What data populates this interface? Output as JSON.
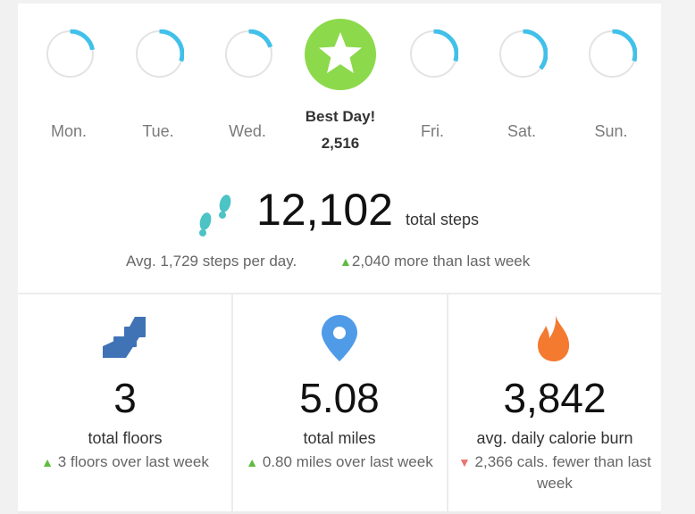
{
  "days": [
    {
      "label": "Mon.",
      "progress": 0.22
    },
    {
      "label": "Tue.",
      "progress": 0.3
    },
    {
      "label": "Wed.",
      "progress": 0.2
    },
    {
      "label": "Fri.",
      "progress": 0.3
    },
    {
      "label": "Sat.",
      "progress": 0.36
    },
    {
      "label": "Sun.",
      "progress": 0.3
    }
  ],
  "best_day": {
    "title": "Best Day!",
    "value": "2,516",
    "icon": "star-icon"
  },
  "steps": {
    "total": "12,102",
    "unit": "total steps",
    "average": "Avg. 1,729 steps per day.",
    "delta": "2,040 more than last week",
    "icon": "footprints-icon"
  },
  "stats": [
    {
      "icon": "stairs-icon",
      "value": "3",
      "label": "total floors",
      "delta": "3 floors over last week",
      "trend": "up"
    },
    {
      "icon": "map-pin-icon",
      "value": "5.08",
      "label": "total miles",
      "delta": "0.80 miles over last week",
      "trend": "up"
    },
    {
      "icon": "flame-icon",
      "value": "3,842",
      "label": "avg. daily calorie burn",
      "delta": "2,366 cals. fewer than last week",
      "trend": "down"
    }
  ],
  "colors": {
    "ring_progress": "#41c0ea",
    "ring_track": "#e3e3e3",
    "best_day": "#8cd94b",
    "trend_up": "#5ebd3e",
    "trend_down": "#e8776e",
    "stairs": "#3f73b5",
    "pin": "#4f9be8",
    "flame": "#f47a30",
    "footprints": "#4cc3c5"
  }
}
